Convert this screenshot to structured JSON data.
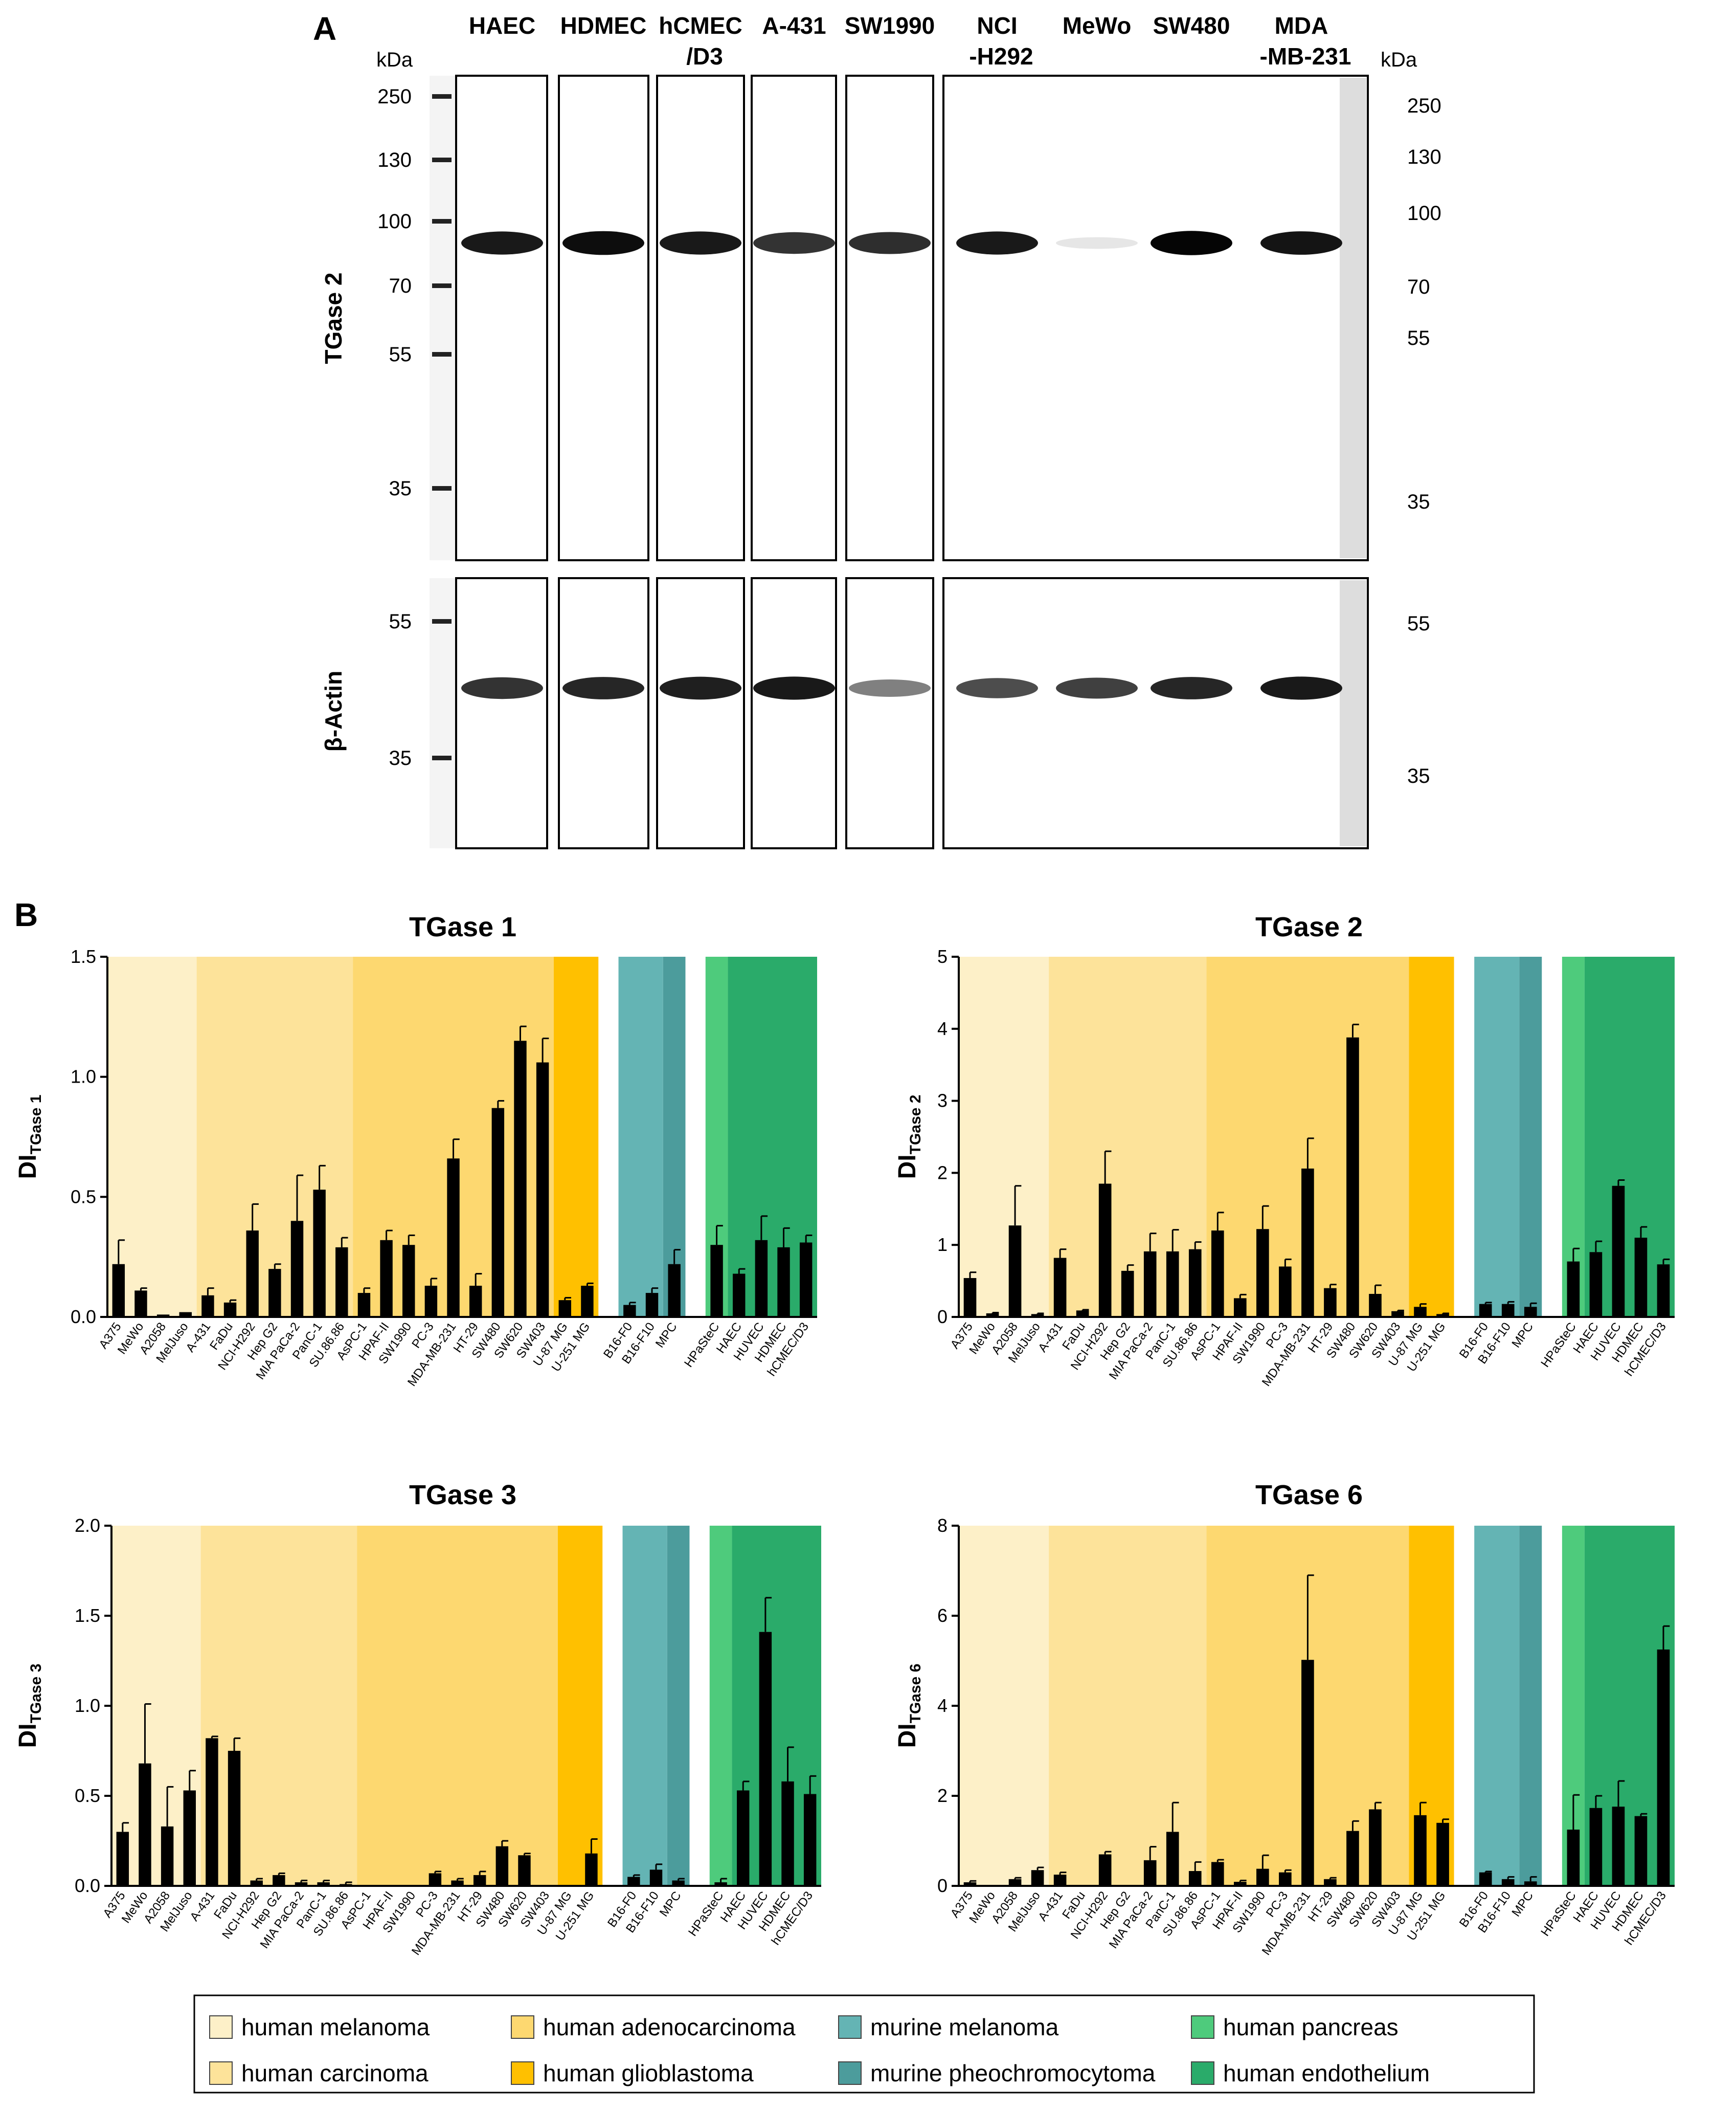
{
  "panel_a": {
    "letter": "A",
    "kda_left": "kDa",
    "kda_right": "kDa",
    "lanes": [
      {
        "line1": "HAEC",
        "line2": ""
      },
      {
        "line1": "HDMEC",
        "line2": ""
      },
      {
        "line1": "hCMEC",
        "line2": "/D3"
      },
      {
        "line1": "A-431",
        "line2": ""
      },
      {
        "line1": "SW1990",
        "line2": ""
      },
      {
        "line1": "NCI",
        "line2": "-H292"
      },
      {
        "line1": "MeWo",
        "line2": ""
      },
      {
        "line1": "SW480",
        "line2": ""
      },
      {
        "line1": "MDA",
        "line2": "-MB-231"
      }
    ],
    "rows": [
      {
        "label": "TGase 2",
        "mw_left": [
          "250",
          "130",
          "100",
          "70",
          "55",
          "35"
        ],
        "mw_right": [
          "250",
          "130",
          "100",
          "70",
          "55",
          "35"
        ],
        "band_kda": 80,
        "band_intensity": [
          0.9,
          0.95,
          0.9,
          0.8,
          0.82,
          0.9,
          0.1,
          0.98,
          0.92
        ]
      },
      {
        "label": "β-Actin",
        "mw_left": [
          "55",
          "35"
        ],
        "mw_right": [
          "55",
          "35"
        ],
        "band_kda": 42,
        "band_intensity": [
          0.8,
          0.85,
          0.88,
          0.9,
          0.5,
          0.7,
          0.75,
          0.85,
          0.9
        ]
      }
    ]
  },
  "panel_b": {
    "letter": "B"
  },
  "group_colors": {
    "human_melanoma": "#FDF0C8",
    "human_carcinoma": "#FDE39A",
    "human_adenocarcinoma": "#FDD870",
    "human_glioblastoma": "#FFC000",
    "murine_melanoma": "#64B4B4",
    "murine_pheochromocytoma": "#4C9C9C",
    "human_pancreas": "#4ECB7C",
    "human_endothelium": "#2AAB6A"
  },
  "legend": [
    {
      "key": "human_melanoma",
      "label": "human melanoma"
    },
    {
      "key": "human_carcinoma",
      "label": "human carcinoma"
    },
    {
      "key": "human_adenocarcinoma",
      "label": "human adenocarcinoma"
    },
    {
      "key": "human_glioblastoma",
      "label": "human glioblastoma"
    },
    {
      "key": "murine_melanoma",
      "label": "murine melanoma"
    },
    {
      "key": "murine_pheochromocytoma",
      "label": "murine pheochromocytoma"
    },
    {
      "key": "human_pancreas",
      "label": "human pancreas"
    },
    {
      "key": "human_endothelium",
      "label": "human endothelium"
    }
  ],
  "chart_data": [
    {
      "type": "bar",
      "title": "TGase 1",
      "ylabel": "DI",
      "ylabel_sub": "TGase 1",
      "ylim": [
        0,
        1.5
      ],
      "yticks": [
        "0.0",
        "0.5",
        "1.0",
        "1.5"
      ],
      "categories": [
        "A375",
        "MeWo",
        "A2058",
        "MelJuso",
        "A-431",
        "FaDu",
        "NCI-H292",
        "Hep G2",
        "MIA PaCa-2",
        "PanC-1",
        "SU.86.86",
        "AsPC-1",
        "HPAF-II",
        "SW1990",
        "PC-3",
        "MDA-MB-231",
        "HT-29",
        "SW480",
        "SW620",
        "SW403",
        "U-87 MG",
        "U-251 MG",
        "B16-F0",
        "B16-F10",
        "MPC",
        "HPaSteC",
        "HAEC",
        "HUVEC",
        "HDMEC",
        "hCMEC/D3"
      ],
      "values": [
        0.22,
        0.11,
        0.01,
        0.02,
        0.09,
        0.06,
        0.36,
        0.2,
        0.4,
        0.53,
        0.29,
        0.1,
        0.32,
        0.3,
        0.13,
        0.66,
        0.13,
        0.87,
        1.15,
        1.06,
        0.07,
        0.13,
        0.05,
        0.1,
        0.22,
        0.3,
        0.18,
        0.32,
        0.29,
        0.31
      ],
      "errors": [
        0.1,
        0.01,
        0.0,
        0.0,
        0.03,
        0.01,
        0.11,
        0.02,
        0.19,
        0.1,
        0.04,
        0.02,
        0.04,
        0.04,
        0.03,
        0.08,
        0.05,
        0.03,
        0.06,
        0.1,
        0.01,
        0.01,
        0.01,
        0.02,
        0.06,
        0.08,
        0.02,
        0.1,
        0.08,
        0.03
      ]
    },
    {
      "type": "bar",
      "title": "TGase 2",
      "ylabel": "DI",
      "ylabel_sub": "TGase 2",
      "ylim": [
        0,
        5
      ],
      "yticks": [
        "0",
        "1",
        "2",
        "3",
        "4",
        "5"
      ],
      "categories": [
        "A375",
        "MeWo",
        "A2058",
        "MelJuso",
        "A-431",
        "FaDu",
        "NCI-H292",
        "Hep G2",
        "MIA PaCa-2",
        "PanC-1",
        "SU.86.86",
        "AsPC-1",
        "HPAF-II",
        "SW1990",
        "PC-3",
        "MDA-MB-231",
        "HT-29",
        "SW480",
        "SW620",
        "SW403",
        "U-87 MG",
        "U-251 MG",
        "B16-F0",
        "B16-F10",
        "MPC",
        "HPaSteC",
        "HAEC",
        "HUVEC",
        "HDMEC",
        "hCMEC/D3"
      ],
      "values": [
        0.54,
        0.05,
        1.27,
        0.04,
        0.82,
        0.09,
        1.85,
        0.64,
        0.91,
        0.91,
        0.94,
        1.2,
        0.26,
        1.22,
        0.7,
        2.06,
        0.4,
        3.88,
        0.32,
        0.08,
        0.14,
        0.04,
        0.18,
        0.18,
        0.14,
        0.77,
        0.9,
        1.82,
        1.1,
        0.73
      ],
      "errors": [
        0.08,
        0.01,
        0.55,
        0.01,
        0.12,
        0.01,
        0.45,
        0.08,
        0.25,
        0.3,
        0.1,
        0.25,
        0.05,
        0.32,
        0.1,
        0.42,
        0.05,
        0.18,
        0.12,
        0.01,
        0.04,
        0.01,
        0.02,
        0.03,
        0.05,
        0.18,
        0.15,
        0.08,
        0.15,
        0.07
      ]
    },
    {
      "type": "bar",
      "title": "TGase 3",
      "ylabel": "DI",
      "ylabel_sub": "TGase 3",
      "ylim": [
        0,
        2.0
      ],
      "yticks": [
        "0.0",
        "0.5",
        "1.0",
        "1.5",
        "2.0"
      ],
      "categories": [
        "A375",
        "MeWo",
        "A2058",
        "MelJuso",
        "A-431",
        "FaDu",
        "NCI-H292",
        "Hep G2",
        "MIA PaCa-2",
        "PanC-1",
        "SU.86.86",
        "AsPC-1",
        "HPAF-II",
        "SW1990",
        "PC-3",
        "MDA-MB-231",
        "HT-29",
        "SW480",
        "SW620",
        "SW403",
        "U-87 MG",
        "U-251 MG",
        "B16-F0",
        "B16-F10",
        "MPC",
        "HPaSteC",
        "HAEC",
        "HUVEC",
        "HDMEC",
        "hCMEC/D3"
      ],
      "values": [
        0.3,
        0.68,
        0.33,
        0.53,
        0.82,
        0.75,
        0.03,
        0.06,
        0.02,
        0.02,
        0.01,
        0.0,
        0.0,
        0.0,
        0.07,
        0.03,
        0.06,
        0.22,
        0.17,
        0.0,
        0.0,
        0.18,
        0.05,
        0.09,
        0.03,
        0.02,
        0.53,
        1.41,
        0.58,
        0.51
      ],
      "errors": [
        0.05,
        0.33,
        0.22,
        0.11,
        0.01,
        0.07,
        0.01,
        0.01,
        0.01,
        0.01,
        0.01,
        0.0,
        0.0,
        0.0,
        0.01,
        0.01,
        0.02,
        0.03,
        0.01,
        0.0,
        0.0,
        0.08,
        0.01,
        0.03,
        0.01,
        0.02,
        0.05,
        0.19,
        0.19,
        0.1
      ]
    },
    {
      "type": "bar",
      "title": "TGase 6",
      "ylabel": "DI",
      "ylabel_sub": "TGase 6",
      "ylim": [
        0,
        8
      ],
      "yticks": [
        "0",
        "2",
        "4",
        "6",
        "8"
      ],
      "categories": [
        "A375",
        "MeWo",
        "A2058",
        "MelJuso",
        "A-431",
        "FaDu",
        "NCI-H292",
        "Hep G2",
        "MIA PaCa-2",
        "PanC-1",
        "SU.86.86",
        "AsPC-1",
        "HPAF-II",
        "SW1990",
        "PC-3",
        "MDA-MB-231",
        "HT-29",
        "SW480",
        "SW620",
        "SW403",
        "U-87 MG",
        "U-251 MG",
        "B16-F0",
        "B16-F10",
        "MPC",
        "HPaSteC",
        "HAEC",
        "HUVEC",
        "HDMEC",
        "hCMEC/D3"
      ],
      "values": [
        0.08,
        0.0,
        0.15,
        0.35,
        0.25,
        0.0,
        0.7,
        0.0,
        0.57,
        1.2,
        0.33,
        0.53,
        0.09,
        0.38,
        0.3,
        5.02,
        0.15,
        1.22,
        1.7,
        0.0,
        1.57,
        1.4,
        0.3,
        0.15,
        0.1,
        1.25,
        1.73,
        1.76,
        1.55,
        5.25
      ],
      "errors": [
        0.03,
        0.0,
        0.03,
        0.06,
        0.05,
        0.0,
        0.06,
        0.0,
        0.3,
        0.65,
        0.2,
        0.05,
        0.03,
        0.3,
        0.05,
        1.88,
        0.03,
        0.22,
        0.15,
        0.0,
        0.28,
        0.08,
        0.02,
        0.05,
        0.1,
        0.77,
        0.27,
        0.57,
        0.05,
        0.52
      ]
    }
  ]
}
